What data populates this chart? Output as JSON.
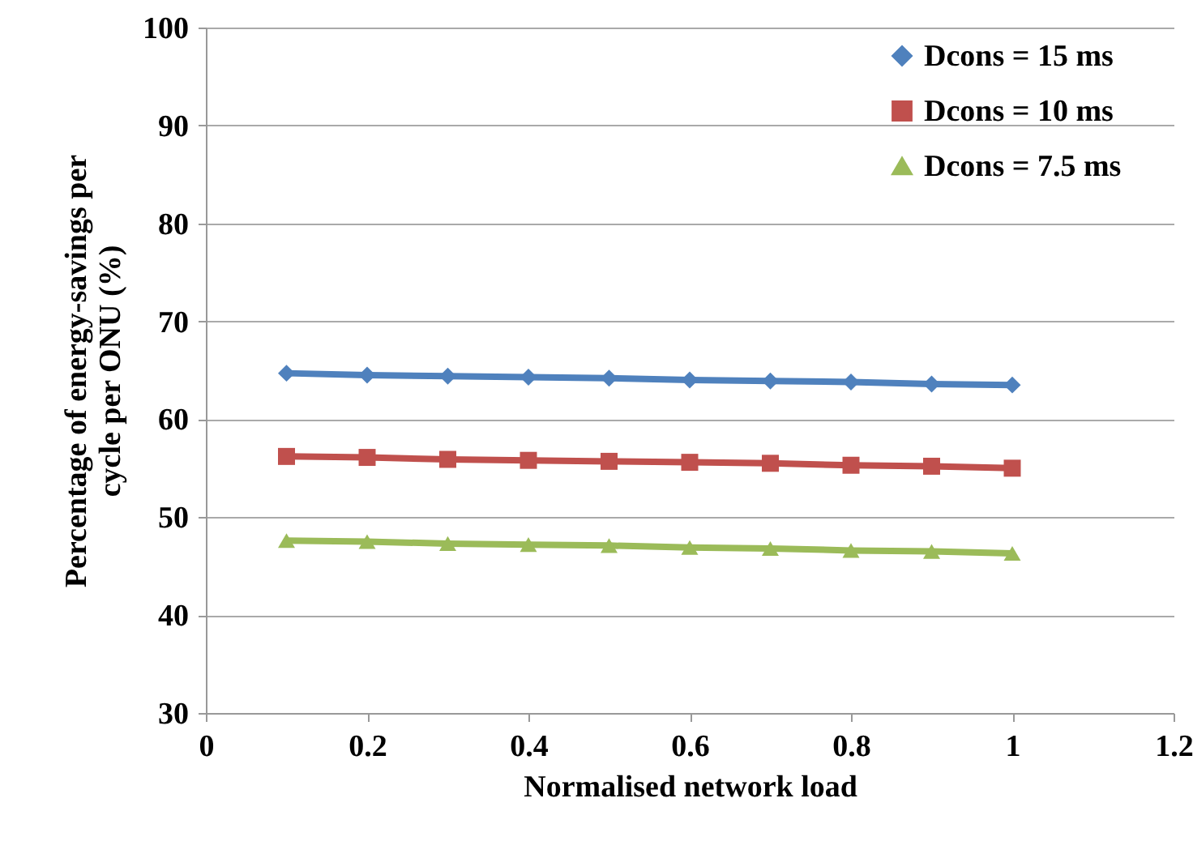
{
  "chart_data": {
    "type": "line",
    "xlabel": "Normalised network load",
    "ylabel": "Percentage of energy-savings per cycle per  ONU (%)",
    "x": [
      0.1,
      0.2,
      0.3,
      0.4,
      0.5,
      0.6,
      0.7,
      0.8,
      0.9,
      1
    ],
    "series": [
      {
        "name": "Dcons = 15 ms",
        "color": "#4f81bd",
        "marker": "diamond",
        "values": [
          64.7,
          64.5,
          64.4,
          64.3,
          64.2,
          64.0,
          63.9,
          63.8,
          63.6,
          63.5
        ]
      },
      {
        "name": "Dcons = 10 ms",
        "color": "#c0504d",
        "marker": "square",
        "values": [
          56.2,
          56.1,
          55.9,
          55.8,
          55.7,
          55.6,
          55.5,
          55.3,
          55.2,
          55.0
        ]
      },
      {
        "name": "Dcons = 7.5 ms",
        "color": "#9bbb59",
        "marker": "triangle",
        "values": [
          47.6,
          47.5,
          47.3,
          47.2,
          47.1,
          46.9,
          46.8,
          46.6,
          46.5,
          46.3
        ]
      }
    ],
    "xlim": [
      0,
      1.2
    ],
    "xticks": [
      0,
      0.2,
      0.4,
      0.6,
      0.8,
      1,
      1.2
    ],
    "ylim": [
      30,
      100
    ],
    "yticks": [
      30,
      40,
      50,
      60,
      70,
      80,
      90,
      100
    ],
    "grid": "y",
    "legend": "top right",
    "line_style": "solid"
  }
}
